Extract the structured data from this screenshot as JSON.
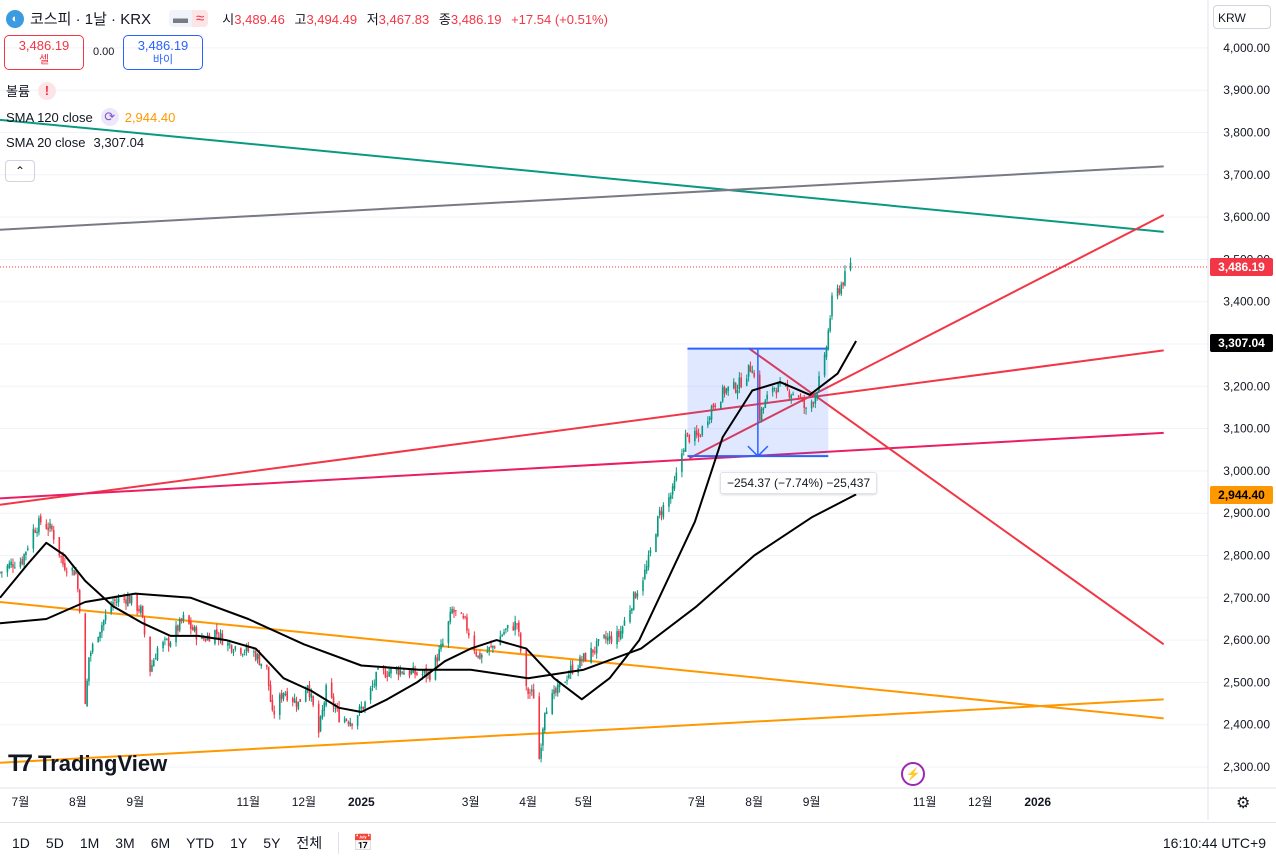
{
  "header": {
    "symbol": "코스피 · 1날 · KRX",
    "ohlc": [
      {
        "label": "시",
        "value": "3,489.46"
      },
      {
        "label": "고",
        "value": "3,494.49"
      },
      {
        "label": "저",
        "value": "3,467.83"
      },
      {
        "label": "종",
        "value": "3,486.19"
      }
    ],
    "change": "+17.54 (+0.51%)"
  },
  "trade": {
    "sell_price": "3,486.19",
    "sell_label": "셀",
    "spread": "0.00",
    "buy_price": "3,486.19",
    "buy_label": "바이"
  },
  "indicators": {
    "volume_label": "볼륨",
    "sma120_label": "SMA 120 close",
    "sma120_value": "2,944.40",
    "sma20_label": "SMA 20 close",
    "sma20_value": "3,307.04"
  },
  "currency": "KRW",
  "price_tags": {
    "last": "3,486.19",
    "sma20": "3,307.04",
    "sma120": "2,944.40"
  },
  "measure_label": "−254.37 (−7.74%) −25,437",
  "watermark": "TradingView",
  "timeframes": [
    "1D",
    "5D",
    "1M",
    "3M",
    "6M",
    "YTD",
    "1Y",
    "5Y",
    "전체"
  ],
  "clock": "16:10:44 UTC+9",
  "colors": {
    "up": "#089981",
    "down": "#f23645",
    "sma20": "#000000",
    "sma120": "#ff9800",
    "measure": "#2962ff"
  },
  "icons": [
    "chevron-up-icon",
    "sync-icon",
    "warning-icon",
    "calendar-range-icon",
    "gear-icon",
    "lightning-icon"
  ],
  "chart_data": {
    "type": "candlestick",
    "y_axis": {
      "ticks": [
        "4,000.00",
        "3,900.00",
        "3,800.00",
        "3,700.00",
        "3,600.00",
        "3,500.00",
        "3,400.00",
        "3,300.00",
        "3,200.00",
        "3,100.00",
        "3,000.00",
        "2,900.00",
        "2,800.00",
        "2,700.00",
        "2,600.00",
        "2,500.00",
        "2,400.00",
        "2,300.00"
      ],
      "range": [
        2270,
        4040
      ]
    },
    "x_axis": {
      "ticks": [
        "7월",
        "8월",
        "9월",
        "11월",
        "12월",
        "2025",
        "3월",
        "4월",
        "5월",
        "7월",
        "8월",
        "9월",
        "11월",
        "12월",
        "2026"
      ],
      "range": [
        "2024-06-20",
        "2026-03-10"
      ]
    },
    "close_path": [
      [
        "2024-06-20",
        2760
      ],
      [
        "2024-06-26",
        2780
      ],
      [
        "2024-07-02",
        2790
      ],
      [
        "2024-07-08",
        2860
      ],
      [
        "2024-07-12",
        2880
      ],
      [
        "2024-07-18",
        2860
      ],
      [
        "2024-07-24",
        2780
      ],
      [
        "2024-07-31",
        2760
      ],
      [
        "2024-08-02",
        2680
      ],
      [
        "2024-08-05",
        2440
      ],
      [
        "2024-08-07",
        2560
      ],
      [
        "2024-08-12",
        2620
      ],
      [
        "2024-08-20",
        2690
      ],
      [
        "2024-08-28",
        2700
      ],
      [
        "2024-09-04",
        2670
      ],
      [
        "2024-09-09",
        2530
      ],
      [
        "2024-09-13",
        2580
      ],
      [
        "2024-09-20",
        2600
      ],
      [
        "2024-09-27",
        2650
      ],
      [
        "2024-10-07",
        2600
      ],
      [
        "2024-10-14",
        2620
      ],
      [
        "2024-10-21",
        2590
      ],
      [
        "2024-10-28",
        2580
      ],
      [
        "2024-11-04",
        2570
      ],
      [
        "2024-11-11",
        2530
      ],
      [
        "2024-11-14",
        2420
      ],
      [
        "2024-11-20",
        2480
      ],
      [
        "2024-11-28",
        2450
      ],
      [
        "2024-12-03",
        2500
      ],
      [
        "2024-12-09",
        2380
      ],
      [
        "2024-12-13",
        2480
      ],
      [
        "2024-12-20",
        2420
      ],
      [
        "2024-12-27",
        2410
      ],
      [
        "2025-01-03",
        2450
      ],
      [
        "2025-01-10",
        2520
      ],
      [
        "2025-01-20",
        2530
      ],
      [
        "2025-01-31",
        2520
      ],
      [
        "2025-02-07",
        2520
      ],
      [
        "2025-02-14",
        2590
      ],
      [
        "2025-02-19",
        2670
      ],
      [
        "2025-02-26",
        2640
      ],
      [
        "2025-03-05",
        2560
      ],
      [
        "2025-03-12",
        2580
      ],
      [
        "2025-03-19",
        2620
      ],
      [
        "2025-03-26",
        2640
      ],
      [
        "2025-03-31",
        2480
      ],
      [
        "2025-04-04",
        2470
      ],
      [
        "2025-04-07",
        2320
      ],
      [
        "2025-04-10",
        2440
      ],
      [
        "2025-04-17",
        2480
      ],
      [
        "2025-04-24",
        2530
      ],
      [
        "2025-05-02",
        2560
      ],
      [
        "2025-05-12",
        2600
      ],
      [
        "2025-05-20",
        2610
      ],
      [
        "2025-05-28",
        2700
      ],
      [
        "2025-06-04",
        2770
      ],
      [
        "2025-06-11",
        2900
      ],
      [
        "2025-06-18",
        2950
      ],
      [
        "2025-06-25",
        3080
      ],
      [
        "2025-07-02",
        3080
      ],
      [
        "2025-07-09",
        3150
      ],
      [
        "2025-07-16",
        3190
      ],
      [
        "2025-07-23",
        3200
      ],
      [
        "2025-07-31",
        3250
      ],
      [
        "2025-08-04",
        3130
      ],
      [
        "2025-08-11",
        3200
      ],
      [
        "2025-08-18",
        3190
      ],
      [
        "2025-08-25",
        3180
      ],
      [
        "2025-08-29",
        3140
      ],
      [
        "2025-09-03",
        3180
      ],
      [
        "2025-09-08",
        3260
      ],
      [
        "2025-09-12",
        3400
      ],
      [
        "2025-09-17",
        3440
      ],
      [
        "2025-09-22",
        3486.19
      ]
    ],
    "series": [
      {
        "name": "SMA 20 close",
        "points": [
          [
            "2024-06-20",
            2700
          ],
          [
            "2024-07-05",
            2780
          ],
          [
            "2024-07-15",
            2830
          ],
          [
            "2024-07-25",
            2800
          ],
          [
            "2024-08-05",
            2740
          ],
          [
            "2024-08-20",
            2680
          ],
          [
            "2024-09-05",
            2640
          ],
          [
            "2024-09-20",
            2610
          ],
          [
            "2024-10-05",
            2610
          ],
          [
            "2024-10-20",
            2600
          ],
          [
            "2024-11-05",
            2580
          ],
          [
            "2024-11-20",
            2510
          ],
          [
            "2024-12-05",
            2480
          ],
          [
            "2024-12-20",
            2440
          ],
          [
            "2025-01-01",
            2430
          ],
          [
            "2025-01-15",
            2460
          ],
          [
            "2025-01-31",
            2500
          ],
          [
            "2025-02-15",
            2550
          ],
          [
            "2025-03-01",
            2580
          ],
          [
            "2025-03-15",
            2600
          ],
          [
            "2025-03-31",
            2580
          ],
          [
            "2025-04-15",
            2510
          ],
          [
            "2025-04-30",
            2460
          ],
          [
            "2025-05-15",
            2510
          ],
          [
            "2025-05-31",
            2600
          ],
          [
            "2025-06-15",
            2740
          ],
          [
            "2025-06-30",
            2880
          ],
          [
            "2025-07-15",
            3080
          ],
          [
            "2025-07-31",
            3190
          ],
          [
            "2025-08-15",
            3210
          ],
          [
            "2025-08-31",
            3180
          ],
          [
            "2025-09-15",
            3230
          ],
          [
            "2025-09-25",
            3307.04
          ]
        ]
      },
      {
        "name": "SMA 120 close",
        "points": [
          [
            "2024-06-20",
            2640
          ],
          [
            "2024-07-15",
            2650
          ],
          [
            "2024-08-05",
            2690
          ],
          [
            "2024-09-01",
            2710
          ],
          [
            "2024-10-01",
            2700
          ],
          [
            "2024-11-01",
            2650
          ],
          [
            "2024-12-01",
            2590
          ],
          [
            "2025-01-01",
            2540
          ],
          [
            "2025-02-01",
            2530
          ],
          [
            "2025-03-01",
            2530
          ],
          [
            "2025-04-01",
            2510
          ],
          [
            "2025-05-01",
            2530
          ],
          [
            "2025-06-01",
            2580
          ],
          [
            "2025-07-01",
            2680
          ],
          [
            "2025-08-01",
            2800
          ],
          [
            "2025-09-01",
            2890
          ],
          [
            "2025-09-25",
            2944.4
          ]
        ]
      }
    ],
    "measure": {
      "from": [
        "2025-06-26",
        3289
      ],
      "to": [
        "2025-09-10",
        3035
      ],
      "change": "−254.37 (−7.74%) −25,437"
    }
  }
}
